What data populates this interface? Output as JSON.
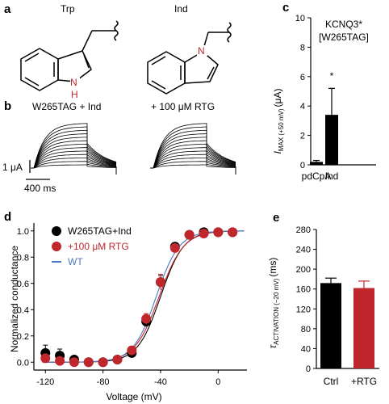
{
  "panels": {
    "a": {
      "letter": "a",
      "trp_label": "Trp",
      "ind_label": "Ind",
      "atom_n": "N",
      "atom_h": "H"
    },
    "b": {
      "letter": "b",
      "title_left": "W265TAG + Ind",
      "title_right": "+ 100 μM RTG",
      "scale_current": "1 μA",
      "scale_time": "400 ms"
    },
    "c": {
      "letter": "c",
      "title_line1": "KCNQ3*",
      "title_line2": "[W265TAG]",
      "ylabel_main": "I",
      "ylabel_sub": "MAX (+50 mV)",
      "ylabel_unit": "(μA)",
      "significance": "*"
    },
    "d": {
      "letter": "d",
      "xlabel": "Voltage (mV)",
      "ylabel": "Normalized conductance",
      "legend": [
        "W265TAG+Ind",
        "+100 μM RTG",
        "WT"
      ]
    },
    "e": {
      "letter": "e",
      "ylabel_main": "τ",
      "ylabel_sub": "ACTIVATION (−20 mV)",
      "ylabel_unit": "(ms)"
    }
  },
  "colors": {
    "black": "#000000",
    "red": "#c0272d",
    "blue": "#4a78c2",
    "gray": "#555555"
  },
  "chart_data": [
    {
      "id": "c",
      "type": "bar",
      "categories": [
        "pdCpA",
        "Ind"
      ],
      "values": [
        0.2,
        3.4
      ],
      "errors": [
        0.1,
        1.8
      ],
      "ylim": [
        0,
        10
      ],
      "yticks": [
        0,
        2,
        4,
        6,
        8,
        10
      ],
      "tick_labels": [
        "0",
        "2",
        "4",
        "6",
        "8",
        "10"
      ]
    },
    {
      "id": "d",
      "type": "scatter",
      "xlim": [
        -128,
        20
      ],
      "ylim": [
        -0.06,
        1.06
      ],
      "xticks": [
        -120,
        -80,
        -40,
        0
      ],
      "xtick_labels": [
        "-120",
        "-80",
        "-40",
        "0"
      ],
      "yticks": [
        0.0,
        0.2,
        0.4,
        0.6,
        0.8,
        1.0
      ],
      "ytick_labels": [
        "0.0",
        "0.2",
        "0.4",
        "0.6",
        "0.8",
        "1.0"
      ],
      "x": [
        -120,
        -110,
        -100,
        -90,
        -80,
        -70,
        -60,
        -50,
        -40,
        -30,
        -20,
        -10,
        0,
        10
      ],
      "series": [
        {
          "name": "W265TAG+Ind",
          "color": "#000000",
          "values": [
            0.07,
            0.05,
            0.02,
            0.0,
            0.0,
            0.02,
            0.07,
            0.31,
            0.61,
            0.88,
            0.97,
            0.99,
            0.99,
            0.99
          ],
          "errors": [
            0.06,
            0.05,
            0.02,
            0.01,
            0.01,
            0.02,
            0.02,
            0.04,
            0.05,
            0.03,
            0.02,
            0.02,
            0.02,
            0.02
          ]
        },
        {
          "name": "+100 μM RTG",
          "color": "#c0272d",
          "values": [
            0.03,
            0.01,
            0.0,
            0.0,
            0.0,
            0.02,
            0.09,
            0.33,
            0.61,
            0.87,
            0.97,
            0.98,
            0.99,
            0.99
          ],
          "errors": [
            0.02,
            0.02,
            0.01,
            0.01,
            0.01,
            0.02,
            0.02,
            0.04,
            0.06,
            0.03,
            0.02,
            0.02,
            0.02,
            0.02
          ]
        }
      ],
      "fits": [
        {
          "name": "W265TAG+Ind",
          "color": "#000000",
          "v_half": -40,
          "slope": 8
        },
        {
          "name": "+100 μM RTG",
          "color": "#c0272d",
          "v_half": -41,
          "slope": 8.5
        },
        {
          "name": "WT",
          "color": "#4a78c2",
          "v_half": -43,
          "slope": 8
        }
      ]
    },
    {
      "id": "e",
      "type": "bar",
      "categories": [
        "Ctrl",
        "+RTG"
      ],
      "values": [
        172,
        162
      ],
      "errors": [
        10,
        14
      ],
      "colors": [
        "#000000",
        "#c0272d"
      ],
      "ylim": [
        0,
        280
      ],
      "yticks": [
        0,
        40,
        80,
        120,
        160,
        200,
        240,
        280
      ],
      "tick_labels": [
        "0",
        "40",
        "80",
        "120",
        "160",
        "200",
        "240",
        "280"
      ]
    }
  ]
}
